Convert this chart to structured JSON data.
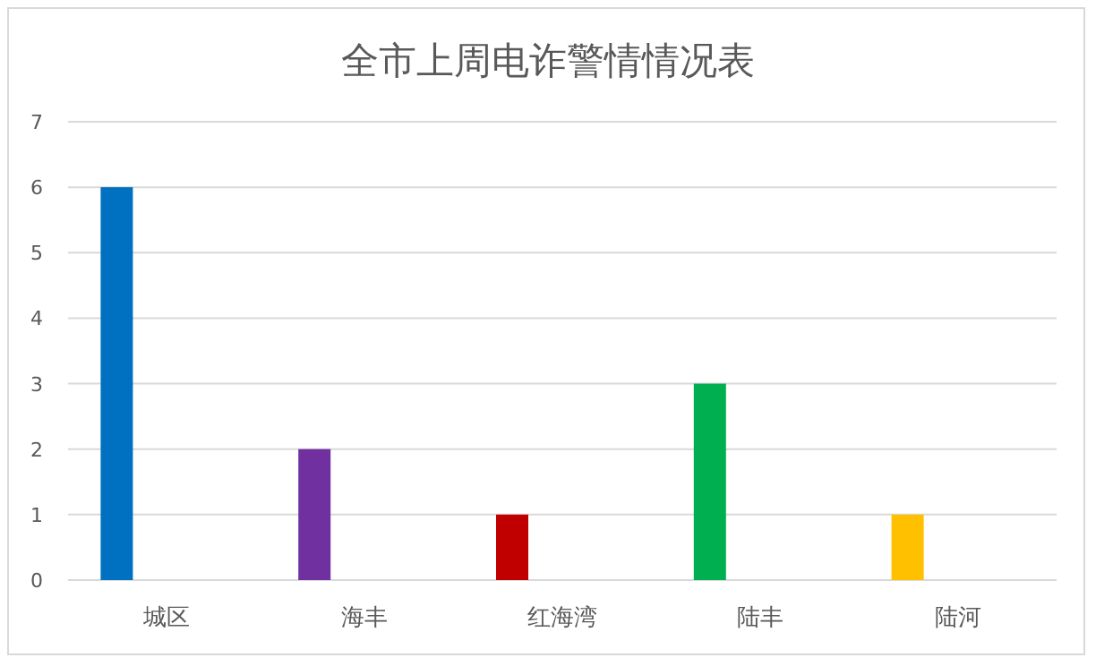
{
  "chart_data": {
    "type": "bar",
    "title": "全市上周电诈警情情况表",
    "categories": [
      "城区",
      "海丰",
      "红海湾",
      "陆丰",
      "陆河"
    ],
    "values": [
      6,
      2,
      1,
      3,
      1
    ],
    "colors": [
      "#0070c0",
      "#7030a0",
      "#c00000",
      "#00b050",
      "#ffc000"
    ],
    "ylim": [
      0,
      7
    ],
    "yticks": [
      0,
      1,
      2,
      3,
      4,
      5,
      6,
      7
    ],
    "grid": "y"
  }
}
